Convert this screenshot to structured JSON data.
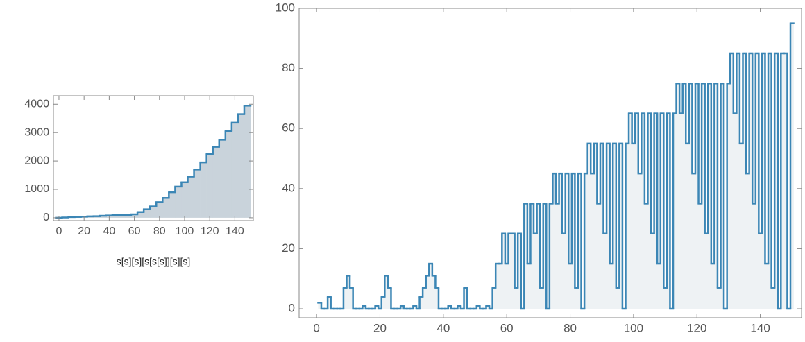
{
  "chart_data": [
    {
      "type": "step",
      "xlabel": "s[s][s][s[s[s]][s][s]",
      "color": "#3b86b5",
      "fill_color": "#c9d3db",
      "x": [
        0,
        5,
        10,
        15,
        20,
        25,
        30,
        35,
        40,
        45,
        50,
        55,
        60,
        65,
        70,
        75,
        80,
        85,
        90,
        95,
        100,
        105,
        110,
        115,
        120,
        125,
        130,
        135,
        140,
        145,
        150
      ],
      "values": [
        0,
        10,
        25,
        30,
        40,
        50,
        55,
        70,
        80,
        90,
        95,
        100,
        120,
        200,
        300,
        400,
        550,
        700,
        900,
        1100,
        1250,
        1450,
        1700,
        1950,
        2250,
        2500,
        2750,
        3050,
        3350,
        3650,
        3950
      ],
      "xlim": [
        -4.4,
        154.7
      ],
      "ylim": [
        -100,
        4300
      ],
      "xticks": [
        0,
        20,
        40,
        60,
        80,
        100,
        120,
        140
      ],
      "yticks": [
        0,
        1000,
        2000,
        3000,
        4000
      ]
    },
    {
      "type": "step",
      "color": "#3b86b5",
      "fill_color": "#eef2f4",
      "x": [
        1,
        2,
        3,
        4,
        5,
        6,
        7,
        8,
        9,
        10,
        11,
        12,
        13,
        14,
        15,
        16,
        17,
        18,
        19,
        20,
        21,
        22,
        23,
        24,
        25,
        26,
        27,
        28,
        29,
        30,
        31,
        32,
        33,
        34,
        35,
        36,
        37,
        38,
        39,
        40,
        41,
        42,
        43,
        44,
        45,
        46,
        47,
        48,
        49,
        50,
        51,
        52,
        53,
        54,
        55,
        56,
        57,
        58,
        59,
        60,
        61,
        62,
        63,
        64,
        65,
        66,
        67,
        68,
        69,
        70,
        71,
        72,
        73,
        74,
        75,
        76,
        77,
        78,
        79,
        80,
        81,
        82,
        83,
        84,
        85,
        86,
        87,
        88,
        89,
        90,
        91,
        92,
        93,
        94,
        95,
        96,
        97,
        98,
        99,
        100,
        101,
        102,
        103,
        104,
        105,
        106,
        107,
        108,
        109,
        110,
        111,
        112,
        113,
        114,
        115,
        116,
        117,
        118,
        119,
        120,
        121,
        122,
        123,
        124,
        125,
        126,
        127,
        128,
        129,
        130,
        131,
        132,
        133,
        134,
        135,
        136,
        137,
        138,
        139,
        140,
        141,
        142,
        143,
        144,
        145,
        146,
        147,
        148,
        149,
        150
      ],
      "values": [
        2,
        0,
        0,
        4,
        0,
        0,
        0,
        0,
        7,
        11,
        7,
        0,
        0,
        0,
        1,
        0,
        0,
        0,
        1,
        0,
        4,
        11,
        7,
        0,
        0,
        0,
        1,
        0,
        0,
        0,
        1,
        0,
        4,
        7,
        11,
        15,
        11,
        7,
        0,
        0,
        0,
        1,
        0,
        0,
        1,
        0,
        7,
        0,
        0,
        0,
        1,
        0,
        0,
        1,
        0,
        7,
        15,
        15,
        25,
        15,
        25,
        25,
        7,
        25,
        0,
        35,
        15,
        35,
        25,
        35,
        7,
        35,
        0,
        35,
        45,
        35,
        45,
        25,
        45,
        15,
        45,
        7,
        45,
        0,
        45,
        55,
        45,
        55,
        35,
        55,
        25,
        55,
        15,
        55,
        7,
        55,
        0,
        55,
        65,
        55,
        65,
        45,
        65,
        35,
        65,
        25,
        65,
        15,
        65,
        7,
        65,
        0,
        65,
        75,
        65,
        75,
        55,
        75,
        45,
        75,
        35,
        75,
        25,
        75,
        15,
        75,
        7,
        75,
        0,
        75,
        85,
        65,
        85,
        55,
        85,
        45,
        85,
        35,
        85,
        25,
        85,
        15,
        85,
        7,
        85,
        0,
        85,
        85,
        0,
        95
      ],
      "xlim": [
        -5.5,
        153
      ],
      "ylim": [
        -3,
        100
      ],
      "xticks": [
        0,
        20,
        40,
        60,
        80,
        100,
        120,
        140
      ],
      "yticks": [
        0,
        20,
        40,
        60,
        80,
        100
      ]
    }
  ]
}
